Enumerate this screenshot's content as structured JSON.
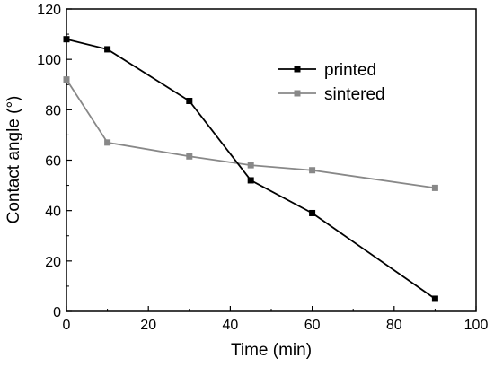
{
  "chart_data": {
    "type": "line",
    "title": "",
    "xlabel": "Time (min)",
    "ylabel": "Contact angle (°)",
    "xlim": [
      0,
      100
    ],
    "ylim": [
      0,
      120
    ],
    "xticks": [
      0,
      20,
      40,
      60,
      80,
      100
    ],
    "yticks": [
      0,
      20,
      40,
      60,
      80,
      100,
      120
    ],
    "grid": false,
    "legend_position": "top-right",
    "series": [
      {
        "name": "printed",
        "color": "#000000",
        "marker": "square",
        "x": [
          0,
          10,
          30,
          45,
          60,
          90
        ],
        "y": [
          108,
          104,
          83.5,
          52,
          39,
          5
        ]
      },
      {
        "name": "sintered",
        "color": "#888888",
        "marker": "square",
        "x": [
          0,
          10,
          30,
          45,
          60,
          90
        ],
        "y": [
          92,
          67,
          61.5,
          58,
          56,
          49
        ]
      }
    ]
  }
}
